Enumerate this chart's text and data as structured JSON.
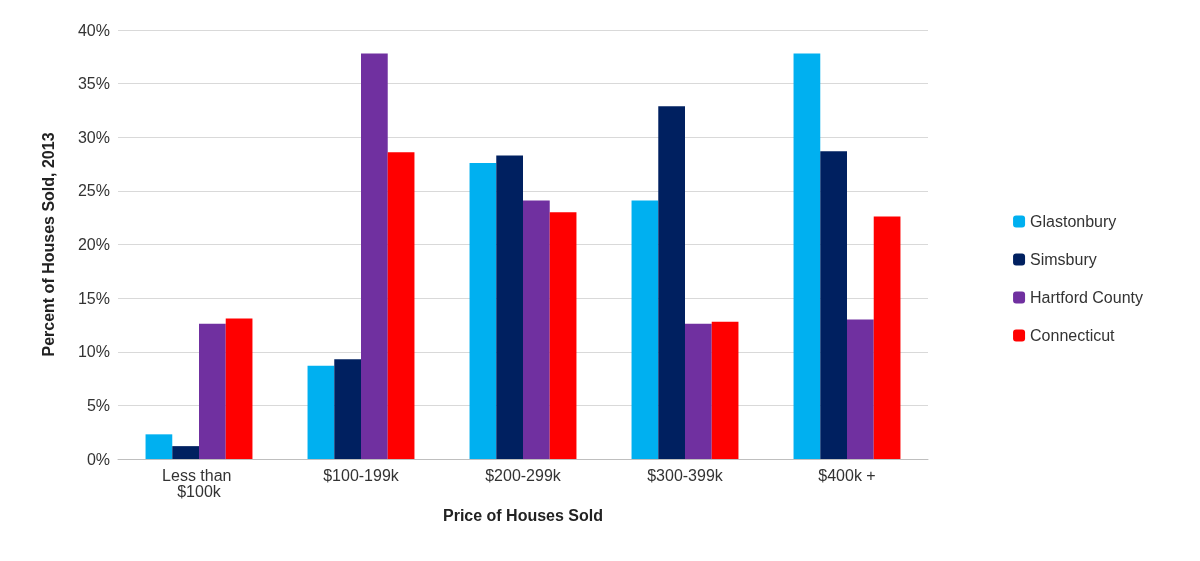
{
  "chart_data": {
    "type": "bar",
    "xlabel": "Price of Houses Sold",
    "ylabel": "Percent of Houses Sold, 2013",
    "categories": [
      "Less than $100k",
      "$100-199k",
      "$200-299k",
      "$300-399k",
      "$400k +"
    ],
    "series": [
      {
        "name": "Glastonbury",
        "color": "#00b0f0",
        "values": [
          2.3,
          8.7,
          27.6,
          24.1,
          37.8
        ]
      },
      {
        "name": "Simsbury",
        "color": "#002060",
        "values": [
          1.2,
          9.3,
          28.3,
          32.9,
          28.7
        ]
      },
      {
        "name": "Hartford County",
        "color": "#7030a0",
        "values": [
          12.6,
          37.8,
          24.1,
          12.6,
          13.0
        ]
      },
      {
        "name": "Connecticut",
        "color": "#ff0000",
        "values": [
          13.1,
          28.6,
          23.0,
          12.8,
          22.6
        ]
      }
    ],
    "ylim": [
      0,
      40
    ],
    "yticks": [
      {
        "value": 0,
        "label": "0%"
      },
      {
        "value": 5,
        "label": "5%"
      },
      {
        "value": 10,
        "label": "10%"
      },
      {
        "value": 15,
        "label": "15%"
      },
      {
        "value": 20,
        "label": "20%"
      },
      {
        "value": 25,
        "label": "25%"
      },
      {
        "value": 30,
        "label": "30%"
      },
      {
        "value": 35,
        "label": "35%"
      },
      {
        "value": 40,
        "label": "40%"
      }
    ],
    "grid": "y",
    "legend": "right"
  }
}
